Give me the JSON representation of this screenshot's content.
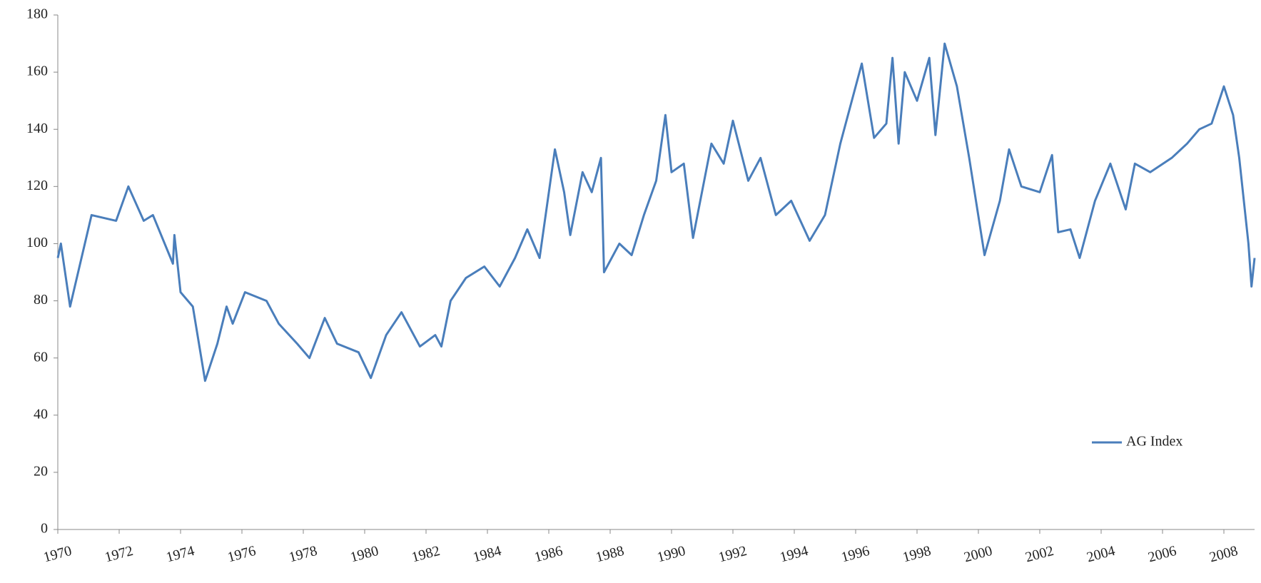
{
  "chart_data": {
    "type": "line",
    "x": [
      1970.0,
      1970.1,
      1970.4,
      1971.1,
      1971.9,
      1972.3,
      1972.8,
      1973.1,
      1973.75,
      1973.8,
      1974.0,
      1974.4,
      1974.8,
      1975.2,
      1975.5,
      1975.7,
      1976.1,
      1976.8,
      1977.2,
      1977.8,
      1978.2,
      1978.7,
      1979.1,
      1979.8,
      1980.2,
      1980.7,
      1981.2,
      1981.8,
      1982.3,
      1982.5,
      1982.8,
      1983.3,
      1983.9,
      1984.4,
      1984.9,
      1985.3,
      1985.7,
      1986.2,
      1986.5,
      1986.7,
      1987.1,
      1987.4,
      1987.7,
      1987.8,
      1988.3,
      1988.7,
      1989.1,
      1989.5,
      1989.8,
      1990.0,
      1990.4,
      1990.7,
      1991.3,
      1991.7,
      1992.0,
      1992.5,
      1992.9,
      1993.4,
      1993.9,
      1994.5,
      1995.0,
      1995.5,
      1996.2,
      1996.6,
      1997.0,
      1997.2,
      1997.4,
      1997.6,
      1998.0,
      1998.4,
      1998.6,
      1998.9,
      1999.3,
      1999.7,
      2000.2,
      2000.7,
      2001.0,
      2001.4,
      2002.0,
      2002.4,
      2002.6,
      2003.0,
      2003.3,
      2003.8,
      2004.3,
      2004.8,
      2005.1,
      2005.6,
      2006.3,
      2006.8,
      2007.2,
      2007.6,
      2008.0,
      2008.3,
      2008.5,
      2008.8,
      2008.9,
      2009.0
    ],
    "series": [
      {
        "name": "AG Index",
        "color": "#4a7ebb",
        "values": [
          95,
          100,
          78,
          110,
          108,
          120,
          108,
          110,
          93,
          103,
          83,
          78,
          52,
          65,
          78,
          72,
          83,
          80,
          72,
          65,
          60,
          74,
          65,
          62,
          53,
          68,
          76,
          64,
          68,
          64,
          80,
          88,
          92,
          85,
          95,
          105,
          95,
          133,
          118,
          103,
          125,
          118,
          130,
          90,
          100,
          96,
          110,
          122,
          145,
          125,
          128,
          102,
          135,
          128,
          143,
          122,
          130,
          110,
          115,
          101,
          110,
          135,
          163,
          137,
          142,
          165,
          135,
          160,
          150,
          165,
          138,
          170,
          155,
          130,
          96,
          115,
          133,
          120,
          118,
          131,
          104,
          105,
          95,
          115,
          128,
          112,
          128,
          125,
          130,
          135,
          140,
          142,
          155,
          145,
          130,
          100,
          85,
          95
        ]
      }
    ],
    "xlim": [
      1970,
      2009
    ],
    "xticks": [
      1970,
      1972,
      1974,
      1976,
      1978,
      1980,
      1982,
      1984,
      1986,
      1988,
      1990,
      1992,
      1994,
      1996,
      1998,
      2000,
      2002,
      2004,
      2006,
      2008
    ],
    "ylim": [
      0,
      180
    ],
    "yticks": [
      0,
      20,
      40,
      60,
      80,
      100,
      120,
      140,
      160,
      180
    ],
    "grid": false
  }
}
